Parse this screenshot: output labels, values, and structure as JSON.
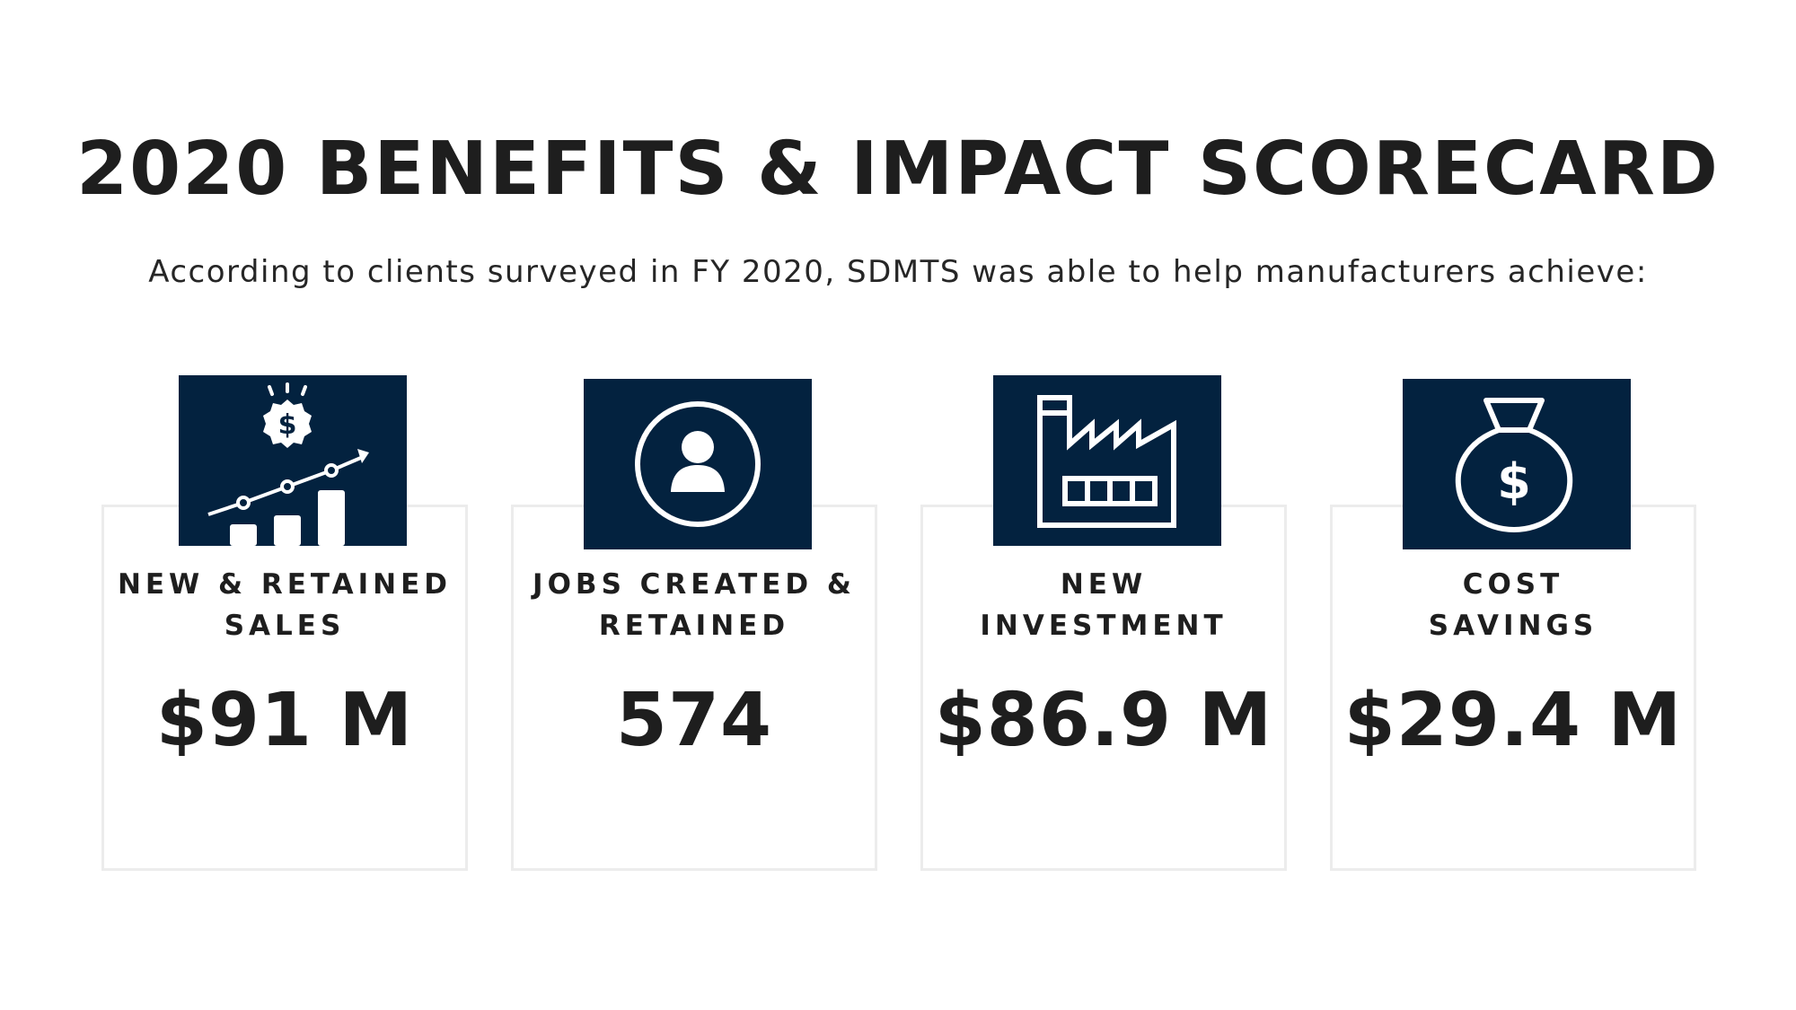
{
  "title": "2020 BENEFITS & IMPACT SCORECARD",
  "subtitle": "According to clients surveyed in FY 2020, SDMTS was able to help manufacturers achieve:",
  "accent_color": "#03223f",
  "metrics": [
    {
      "label_lines": [
        "NEW & RETAINED",
        "SALES"
      ],
      "value": "$91 M",
      "icon": "sales-growth-chart-icon"
    },
    {
      "label_lines": [
        "JOBS CREATED &",
        "RETAINED"
      ],
      "value": "574",
      "icon": "person-icon"
    },
    {
      "label_lines": [
        "NEW",
        "INVESTMENT"
      ],
      "value": "$86.9 M",
      "icon": "factory-icon"
    },
    {
      "label_lines": [
        "COST",
        "SAVINGS"
      ],
      "value": "$29.4 M",
      "icon": "money-bag-icon"
    }
  ]
}
